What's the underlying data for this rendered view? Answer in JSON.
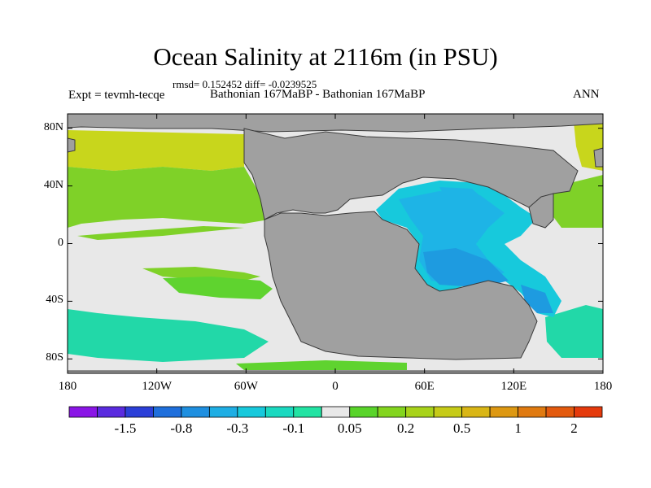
{
  "title": "Ocean Salinity at 2116m (in PSU)",
  "stats": "rmsd= 0.152452 diff= -0.0239525",
  "experiment": "Expt = tevmh-tecqe",
  "runs": "Bathonian 167MaBP - Bathonian 167MaBP",
  "season": "ANN",
  "x_ticks": [
    {
      "label": "180",
      "lon": -180
    },
    {
      "label": "120W",
      "lon": -120
    },
    {
      "label": "60W",
      "lon": -60
    },
    {
      "label": "0",
      "lon": 0
    },
    {
      "label": "60E",
      "lon": 60
    },
    {
      "label": "120E",
      "lon": 120
    },
    {
      "label": "180",
      "lon": 180
    }
  ],
  "y_ticks": [
    {
      "label": "80N",
      "lat": 80
    },
    {
      "label": "40N",
      "lat": 40
    },
    {
      "label": "0",
      "lat": 0
    },
    {
      "label": "40S",
      "lat": -40
    },
    {
      "label": "80S",
      "lat": -80
    }
  ],
  "colorbar": {
    "colors": [
      "#8a15e6",
      "#5a2bdf",
      "#2b3fd8",
      "#1f6fdc",
      "#1e8fe0",
      "#1eaee4",
      "#17c9dc",
      "#1ad9c0",
      "#22e3a3",
      "#e8e8e8",
      "#59d42a",
      "#83d51e",
      "#a8d31a",
      "#c6cb18",
      "#d9b616",
      "#dd9812",
      "#e07a10",
      "#e35a0e",
      "#e53a0c"
    ],
    "labels": [
      "-1.5",
      "-0.8",
      "-0.3",
      "-0.1",
      "0.05",
      "0.2",
      "0.5",
      "1",
      "2"
    ]
  },
  "regions": {
    "land_color": "#a0a0a0",
    "ocean_neutral_color": "#e8e8e8",
    "north_pacific_colors": [
      "#c8d61c",
      "#7fd128",
      "#5fd32f"
    ],
    "tethys_colors": [
      "#1eb4e6",
      "#1e9be0",
      "#17c9dc"
    ],
    "southern_colors": [
      "#22d8a8",
      "#5fd32f"
    ]
  }
}
